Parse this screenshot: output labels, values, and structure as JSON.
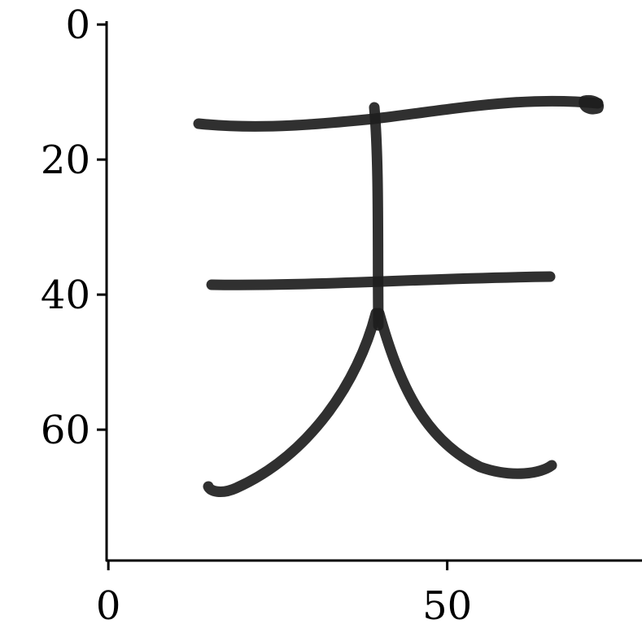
{
  "chart_data": {
    "type": "image",
    "xlim": [
      -0.5,
      78.5
    ],
    "ylim": [
      79.5,
      -0.5
    ],
    "xticks": [
      0,
      50
    ],
    "yticks": [
      0,
      20,
      40,
      60
    ]
  }
}
